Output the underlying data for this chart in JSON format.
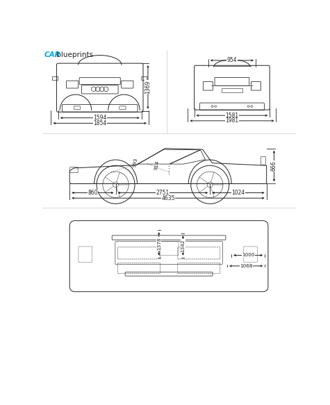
{
  "title_car": "CAR",
  "title_blueprints": " blueprints",
  "title_car_color": "#00aacc",
  "title_blueprints_color": "#222222",
  "background_color": "#ffffff",
  "line_color": "#222222",
  "dim_text_color": "#222222",
  "front_view": {
    "dim_width_inner": "1594",
    "dim_width_outer": "1854",
    "dim_height": "1369"
  },
  "rear_view": {
    "dim_width_inner": "954",
    "dim_width_inner2": "1581",
    "dim_width_outer": "1981"
  },
  "side_view": {
    "dim_wheelbase": "2751",
    "dim_front_overhang": "860",
    "dim_rear_overhang": "1024",
    "dim_total_length": "4635",
    "dim_height": "666",
    "dim_door1": "993",
    "dim_door2": "914"
  },
  "top_view": {
    "dim_width1": "1378",
    "dim_width2": "1342",
    "dim_width3": "1068",
    "dim_width4": "1000"
  }
}
